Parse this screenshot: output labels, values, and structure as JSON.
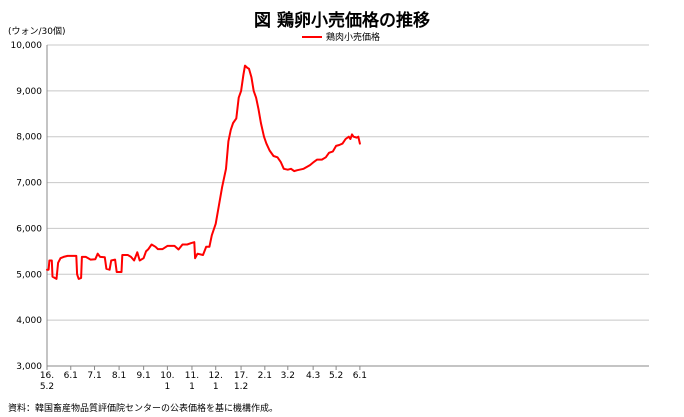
{
  "title": "図  鶏卵小売価格の推移",
  "unit_label": "(ウォン/30個)",
  "source": "資料：韓国畜産物品質評価院センターの公表価格を基に機構作成。",
  "chart_data": {
    "type": "line",
    "title": "図  鶏卵小売価格の推移",
    "ylabel": "(ウォン/30個)",
    "ylim": [
      3000,
      10000
    ],
    "yticks": [
      3000,
      4000,
      5000,
      6000,
      7000,
      8000,
      9000,
      10000
    ],
    "ytick_labels": [
      "3,000",
      "4,000",
      "5,000",
      "6,000",
      "7,000",
      "8,000",
      "9,000",
      "10,000"
    ],
    "xlim": [
      "2016-05-02",
      "2018-06-01"
    ],
    "xticks": [
      {
        "date": "2016-05-02",
        "line1": "16.",
        "line2": "5.2"
      },
      {
        "date": "2016-06-01",
        "line1": "6.1",
        "line2": ""
      },
      {
        "date": "2016-07-01",
        "line1": "7.1",
        "line2": ""
      },
      {
        "date": "2016-08-01",
        "line1": "8.1",
        "line2": ""
      },
      {
        "date": "2016-09-01",
        "line1": "9.1",
        "line2": ""
      },
      {
        "date": "2016-10-01",
        "line1": "10.",
        "line2": "1"
      },
      {
        "date": "2016-11-01",
        "line1": "11.",
        "line2": "1"
      },
      {
        "date": "2016-12-01",
        "line1": "12.",
        "line2": "1"
      },
      {
        "date": "2017-01-02",
        "line1": "17.",
        "line2": "1.2"
      },
      {
        "date": "2017-02-01",
        "line1": "2.1",
        "line2": ""
      },
      {
        "date": "2017-03-02",
        "line1": "3.2",
        "line2": ""
      },
      {
        "date": "2017-04-03",
        "line1": "4.3",
        "line2": ""
      },
      {
        "date": "2017-05-02",
        "line1": "5.2",
        "line2": ""
      },
      {
        "date": "2017-06-01",
        "line1": "6.1",
        "line2": ""
      }
    ],
    "series": [
      {
        "name": "鶏肉小売価格",
        "color": "#ff0000",
        "points": [
          [
            "2016-05-02",
            5100
          ],
          [
            "2016-05-04",
            5100
          ],
          [
            "2016-05-05",
            5300
          ],
          [
            "2016-05-08",
            5300
          ],
          [
            "2016-05-09",
            4950
          ],
          [
            "2016-05-14",
            4900
          ],
          [
            "2016-05-16",
            5250
          ],
          [
            "2016-05-19",
            5350
          ],
          [
            "2016-05-23",
            5380
          ],
          [
            "2016-05-28",
            5400
          ],
          [
            "2016-06-05",
            5400
          ],
          [
            "2016-06-08",
            5400
          ],
          [
            "2016-06-09",
            5000
          ],
          [
            "2016-06-11",
            4900
          ],
          [
            "2016-06-14",
            4920
          ],
          [
            "2016-06-15",
            5380
          ],
          [
            "2016-06-20",
            5380
          ],
          [
            "2016-06-26",
            5320
          ],
          [
            "2016-07-02",
            5330
          ],
          [
            "2016-07-05",
            5450
          ],
          [
            "2016-07-08",
            5380
          ],
          [
            "2016-07-14",
            5370
          ],
          [
            "2016-07-16",
            5120
          ],
          [
            "2016-07-20",
            5100
          ],
          [
            "2016-07-22",
            5300
          ],
          [
            "2016-07-27",
            5320
          ],
          [
            "2016-07-29",
            5050
          ],
          [
            "2016-08-04",
            5050
          ],
          [
            "2016-08-05",
            5420
          ],
          [
            "2016-08-12",
            5420
          ],
          [
            "2016-08-16",
            5380
          ],
          [
            "2016-08-20",
            5300
          ],
          [
            "2016-08-24",
            5480
          ],
          [
            "2016-08-27",
            5300
          ],
          [
            "2016-09-01",
            5350
          ],
          [
            "2016-09-04",
            5500
          ],
          [
            "2016-09-07",
            5550
          ],
          [
            "2016-09-11",
            5650
          ],
          [
            "2016-09-16",
            5600
          ],
          [
            "2016-09-19",
            5550
          ],
          [
            "2016-09-25",
            5550
          ],
          [
            "2016-10-01",
            5620
          ],
          [
            "2016-10-10",
            5620
          ],
          [
            "2016-10-15",
            5540
          ],
          [
            "2016-10-20",
            5650
          ],
          [
            "2016-10-26",
            5650
          ],
          [
            "2016-10-31",
            5680
          ],
          [
            "2016-11-04",
            5700
          ],
          [
            "2016-11-05",
            5350
          ],
          [
            "2016-11-08",
            5450
          ],
          [
            "2016-11-15",
            5420
          ],
          [
            "2016-11-19",
            5600
          ],
          [
            "2016-11-23",
            5600
          ],
          [
            "2016-11-26",
            5850
          ],
          [
            "2016-12-01",
            6100
          ],
          [
            "2016-12-05",
            6500
          ],
          [
            "2016-12-09",
            6900
          ],
          [
            "2016-12-14",
            7300
          ],
          [
            "2016-12-17",
            7900
          ],
          [
            "2016-12-20",
            8150
          ],
          [
            "2016-12-23",
            8300
          ],
          [
            "2016-12-27",
            8400
          ],
          [
            "2016-12-30",
            8850
          ],
          [
            "2017-01-02",
            9000
          ],
          [
            "2017-01-05",
            9350
          ],
          [
            "2017-01-07",
            9550
          ],
          [
            "2017-01-10",
            9500
          ],
          [
            "2017-01-12",
            9480
          ],
          [
            "2017-01-15",
            9300
          ],
          [
            "2017-01-18",
            9000
          ],
          [
            "2017-01-21",
            8850
          ],
          [
            "2017-01-24",
            8600
          ],
          [
            "2017-01-27",
            8300
          ],
          [
            "2017-01-31",
            8000
          ],
          [
            "2017-02-03",
            7850
          ],
          [
            "2017-02-07",
            7700
          ],
          [
            "2017-02-12",
            7580
          ],
          [
            "2017-02-17",
            7550
          ],
          [
            "2017-02-21",
            7450
          ],
          [
            "2017-02-25",
            7300
          ],
          [
            "2017-03-02",
            7280
          ],
          [
            "2017-03-06",
            7300
          ],
          [
            "2017-03-10",
            7250
          ],
          [
            "2017-03-14",
            7270
          ],
          [
            "2017-03-22",
            7300
          ],
          [
            "2017-03-30",
            7380
          ],
          [
            "2017-04-04",
            7450
          ],
          [
            "2017-04-08",
            7500
          ],
          [
            "2017-04-14",
            7500
          ],
          [
            "2017-04-19",
            7550
          ],
          [
            "2017-04-23",
            7650
          ],
          [
            "2017-04-28",
            7680
          ],
          [
            "2017-05-02",
            7800
          ],
          [
            "2017-05-06",
            7820
          ],
          [
            "2017-05-10",
            7850
          ],
          [
            "2017-05-14",
            7950
          ],
          [
            "2017-05-18",
            8000
          ],
          [
            "2017-05-20",
            7950
          ],
          [
            "2017-05-22",
            8050
          ],
          [
            "2017-05-24",
            8000
          ],
          [
            "2017-05-28",
            7980
          ],
          [
            "2017-05-30",
            8000
          ],
          [
            "2017-06-01",
            7850
          ]
        ]
      }
    ]
  }
}
